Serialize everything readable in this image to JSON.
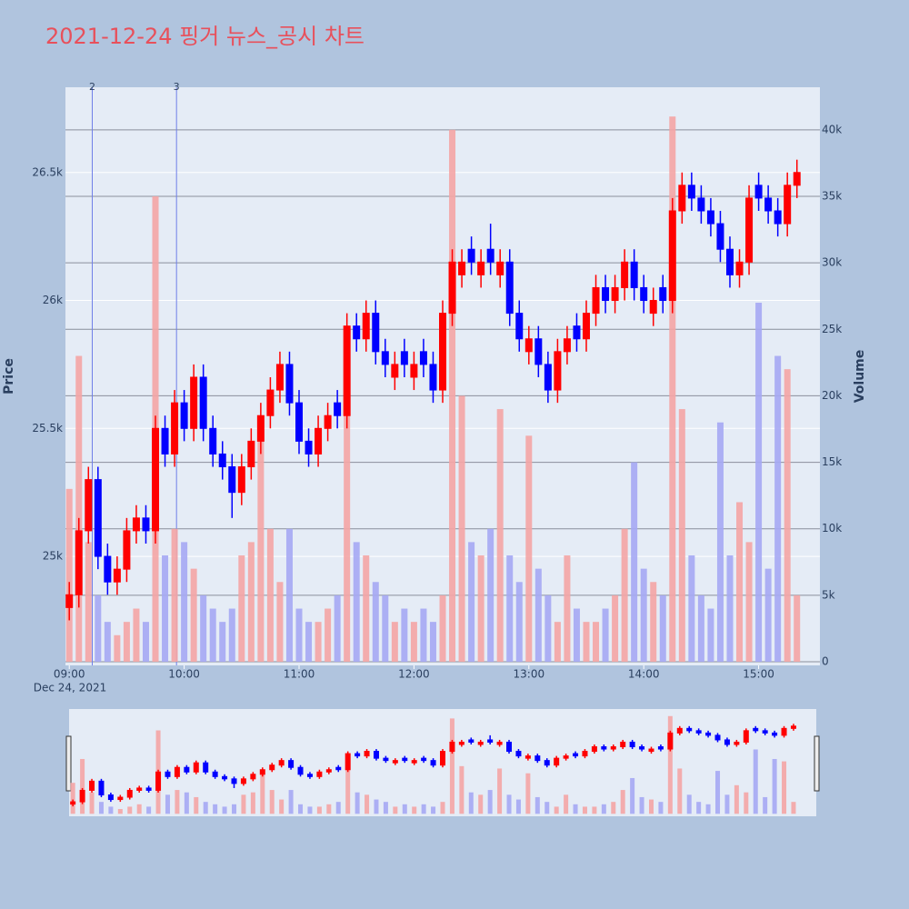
{
  "chart_data": {
    "type": "candlestick",
    "title": "2021-12-24 핑거 뉴스_공시 차트",
    "x_sublabel": "Dec 24, 2021",
    "y_title": "Price",
    "y2_title": "Volume",
    "x": [
      "09:00",
      "09:05",
      "09:10",
      "09:15",
      "09:20",
      "09:25",
      "09:30",
      "09:35",
      "09:40",
      "09:45",
      "09:50",
      "09:55",
      "10:00",
      "10:05",
      "10:10",
      "10:15",
      "10:20",
      "10:25",
      "10:30",
      "10:35",
      "10:40",
      "10:45",
      "10:50",
      "10:55",
      "11:00",
      "11:05",
      "11:10",
      "11:15",
      "11:20",
      "11:25",
      "11:30",
      "11:35",
      "11:40",
      "11:45",
      "11:50",
      "11:55",
      "12:00",
      "12:05",
      "12:10",
      "12:15",
      "12:20",
      "12:25",
      "12:30",
      "12:35",
      "12:40",
      "12:45",
      "12:50",
      "12:55",
      "13:00",
      "13:05",
      "13:10",
      "13:15",
      "13:20",
      "13:25",
      "13:30",
      "13:35",
      "13:40",
      "13:45",
      "13:50",
      "13:55",
      "14:00",
      "14:05",
      "14:10",
      "14:15",
      "14:20",
      "14:25",
      "14:30",
      "14:35",
      "14:40",
      "14:45",
      "14:50",
      "14:55",
      "15:00",
      "15:05",
      "15:10",
      "15:15",
      "15:20"
    ],
    "open": [
      24800,
      24850,
      25100,
      25300,
      25000,
      24900,
      24950,
      25100,
      25150,
      25100,
      25500,
      25400,
      25600,
      25500,
      25700,
      25500,
      25400,
      25350,
      25250,
      25350,
      25450,
      25550,
      25650,
      25750,
      25600,
      25450,
      25400,
      25500,
      25600,
      25550,
      25900,
      25850,
      25950,
      25800,
      25700,
      25800,
      25700,
      25800,
      25750,
      25650,
      25950,
      26100,
      26200,
      26100,
      26200,
      26100,
      26150,
      25950,
      25800,
      25850,
      25750,
      25650,
      25800,
      25900,
      25850,
      25950,
      26050,
      26000,
      26050,
      26150,
      26050,
      25950,
      26050,
      26000,
      26350,
      26450,
      26400,
      26350,
      26300,
      26200,
      26100,
      26150,
      26450,
      26400,
      26350,
      26300,
      26450
    ],
    "high": [
      24900,
      25150,
      25350,
      25350,
      25050,
      25000,
      25150,
      25200,
      25200,
      25550,
      25550,
      25650,
      25650,
      25750,
      25750,
      25550,
      25450,
      25400,
      25400,
      25500,
      25600,
      25700,
      25800,
      25800,
      25650,
      25500,
      25550,
      25600,
      25650,
      25950,
      25950,
      26000,
      26000,
      25850,
      25800,
      25850,
      25800,
      25850,
      25800,
      26000,
      26200,
      26200,
      26250,
      26200,
      26300,
      26200,
      26200,
      26000,
      25900,
      25900,
      25800,
      25850,
      25900,
      25950,
      26000,
      26100,
      26100,
      26100,
      26200,
      26200,
      26100,
      26050,
      26100,
      26400,
      26500,
      26500,
      26450,
      26400,
      26350,
      26250,
      26200,
      26450,
      26500,
      26450,
      26400,
      26500,
      26550
    ],
    "low": [
      24750,
      24800,
      25050,
      24950,
      24850,
      24850,
      24900,
      25050,
      25050,
      25050,
      25350,
      25350,
      25450,
      25450,
      25450,
      25350,
      25300,
      25150,
      25200,
      25300,
      25400,
      25500,
      25600,
      25550,
      25400,
      25350,
      25350,
      25450,
      25500,
      25500,
      25800,
      25800,
      25750,
      25700,
      25650,
      25700,
      25650,
      25700,
      25600,
      25600,
      25900,
      26050,
      26100,
      26050,
      26100,
      26050,
      25900,
      25800,
      25750,
      25700,
      25600,
      25600,
      25750,
      25800,
      25800,
      25900,
      25950,
      25950,
      26000,
      26000,
      25950,
      25900,
      25950,
      25950,
      26300,
      26350,
      26300,
      26250,
      26150,
      26050,
      26050,
      26100,
      26350,
      26300,
      26250,
      26250,
      26400
    ],
    "close": [
      24850,
      25100,
      25300,
      25000,
      24900,
      24950,
      25100,
      25150,
      25100,
      25500,
      25400,
      25600,
      25500,
      25700,
      25500,
      25400,
      25350,
      25250,
      25350,
      25450,
      25550,
      25650,
      25750,
      25600,
      25450,
      25400,
      25500,
      25550,
      25550,
      25900,
      25850,
      25950,
      25800,
      25750,
      25750,
      25750,
      25750,
      25750,
      25650,
      25950,
      26150,
      26150,
      26150,
      26150,
      26150,
      26150,
      25950,
      25850,
      25850,
      25750,
      25650,
      25800,
      25850,
      25850,
      25950,
      26050,
      26000,
      26050,
      26150,
      26050,
      26000,
      26000,
      26000,
      26350,
      26450,
      26400,
      26350,
      26300,
      26200,
      26100,
      26150,
      26400,
      26400,
      26350,
      26300,
      26450,
      26500
    ],
    "volume": [
      13000,
      23000,
      9000,
      5000,
      3000,
      2000,
      3000,
      4000,
      3000,
      35000,
      8000,
      10000,
      9000,
      7000,
      5000,
      4000,
      3000,
      4000,
      8000,
      9000,
      18000,
      10000,
      6000,
      10000,
      4000,
      3000,
      3000,
      4000,
      5000,
      20000,
      9000,
      8000,
      6000,
      5000,
      3000,
      4000,
      3000,
      4000,
      3000,
      5000,
      40000,
      20000,
      9000,
      8000,
      10000,
      19000,
      8000,
      6000,
      17000,
      7000,
      5000,
      3000,
      8000,
      4000,
      3000,
      3000,
      4000,
      5000,
      10000,
      15000,
      7000,
      6000,
      5000,
      41000,
      19000,
      8000,
      5000,
      4000,
      18000,
      8000,
      12000,
      9000,
      27000,
      7000,
      23000,
      22000,
      5000
    ],
    "increasing_color": "#ff0000",
    "decreasing_color": "#0000ff",
    "volume_up_color": "#f4a5a5",
    "volume_down_color": "#a5a8f4",
    "xlim": [
      "08:58",
      "15:32"
    ],
    "xticks": [
      "09:00",
      "10:00",
      "11:00",
      "12:00",
      "13:00",
      "14:00",
      "15:00"
    ],
    "ylim": [
      24574,
      26833
    ],
    "yticks": [
      {
        "value": 25000,
        "label": "25k"
      },
      {
        "value": 25500,
        "label": "25.5k"
      },
      {
        "value": 26000,
        "label": "26k"
      },
      {
        "value": 26500,
        "label": "26.5k"
      }
    ],
    "y2lim": [
      -270,
      43200
    ],
    "y2ticks": [
      0,
      {
        "value": 5000,
        "label": "5k"
      },
      {
        "value": 10000,
        "label": "10k"
      },
      {
        "value": 15000,
        "label": "15k"
      },
      {
        "value": 20000,
        "label": "20k"
      },
      {
        "value": 25000,
        "label": "25k"
      },
      {
        "value": 30000,
        "label": "30k"
      },
      {
        "value": 35000,
        "label": "35k"
      },
      {
        "value": 40000,
        "label": "40k"
      }
    ],
    "annotations": [
      {
        "x": "09:12",
        "text": "2"
      },
      {
        "x": "09:56",
        "text": "3"
      }
    ],
    "range_slider": true
  }
}
